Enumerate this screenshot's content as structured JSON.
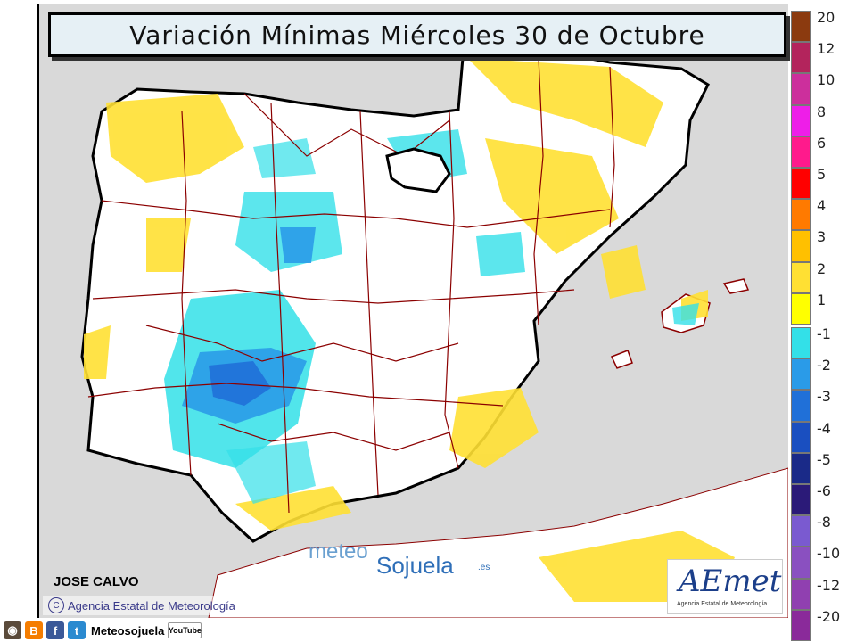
{
  "title": "Variación Mínimas Miércoles 30 de Octubre",
  "author": "JOSE CALVO",
  "credit": "Agencia Estatal de Meteorología",
  "watermark": {
    "top": "meteo",
    "bottom": "Sojuela",
    "suffix": ".es"
  },
  "aemet_logo": {
    "name": "AEmet",
    "subtitle": "Agencia Estatal de Meteorología"
  },
  "social": {
    "handle": "Meteosojuela",
    "youtube": "YouTube"
  },
  "legend": {
    "positive": [
      {
        "label": "20",
        "color": "#8b3a0f"
      },
      {
        "label": "12",
        "color": "#b3245c"
      },
      {
        "label": "10",
        "color": "#cc2f9c"
      },
      {
        "label": "8",
        "color": "#ee1ee8"
      },
      {
        "label": "6",
        "color": "#ff1a8c"
      },
      {
        "label": "5",
        "color": "#ff0000"
      },
      {
        "label": "4",
        "color": "#ff7a00"
      },
      {
        "label": "3",
        "color": "#ffc000"
      },
      {
        "label": "2",
        "color": "#ffe033"
      },
      {
        "label": "1",
        "color": "#ffff00"
      }
    ],
    "negative": [
      {
        "label": "-1",
        "color": "#33e0e8"
      },
      {
        "label": "-2",
        "color": "#2a9be8"
      },
      {
        "label": "-3",
        "color": "#2070d8"
      },
      {
        "label": "-4",
        "color": "#1a4fc0"
      },
      {
        "label": "-5",
        "color": "#1a2a88"
      },
      {
        "label": "-6",
        "color": "#2b1a78"
      },
      {
        "label": "-8",
        "color": "#7a5ad0"
      },
      {
        "label": "-10",
        "color": "#8a50c0"
      },
      {
        "label": "-12",
        "color": "#9040b0"
      },
      {
        "label": "-20",
        "color": "#8a2a9a"
      }
    ]
  },
  "colors": {
    "sea": "#d9d9d9",
    "land": "#ffffff",
    "border": "#000000",
    "province_border": "#8b0000"
  }
}
